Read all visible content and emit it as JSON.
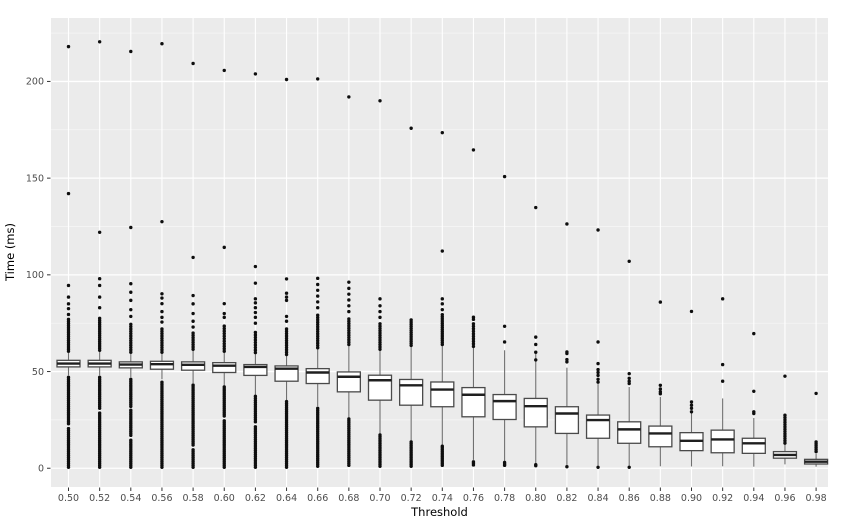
{
  "chart_data": {
    "type": "boxplot",
    "title": "",
    "xlabel": "Threshold",
    "ylabel": "Time (ms)",
    "x_tick_labels": [
      "0.50",
      "0.52",
      "0.54",
      "0.56",
      "0.58",
      "0.60",
      "0.62",
      "0.64",
      "0.66",
      "0.68",
      "0.70",
      "0.72",
      "0.74",
      "0.76",
      "0.78",
      "0.80",
      "0.82",
      "0.84",
      "0.86",
      "0.88",
      "0.90",
      "0.92",
      "0.94",
      "0.96",
      "0.98"
    ],
    "y_ticks": [
      0,
      50,
      100,
      150,
      200
    ],
    "y_minor_ticks": [
      25,
      75,
      125,
      175,
      225
    ],
    "ylim": [
      -9.7,
      232.8
    ],
    "grid": true,
    "legend": "none",
    "colors": {
      "panel_bg": "#ebebeb",
      "grid_major": "#ffffff",
      "grid_minor": "#f7f7f7",
      "tick_mark": "#333333",
      "tick_label": "#4d4d4d",
      "box_fill": "#ffffff",
      "box_stroke": "#4a4a4a",
      "median": "#1f1f1f",
      "whisker": "#707070",
      "point": "#0e0e0e"
    },
    "series": [
      {
        "label": "0.50",
        "x": 0.5,
        "whislo": 48.0,
        "q1": 52.4,
        "med": 54.1,
        "q3": 55.8,
        "whishi": 60.0,
        "outlier_runs": [
          [
            0.5,
            20.5,
            1.0
          ],
          [
            23.0,
            47.5,
            1.0
          ],
          [
            60.5,
            77.0,
            1.1
          ]
        ],
        "outliers": [
          79.5,
          82.5,
          85.0,
          88.5,
          94.5,
          142.0,
          218.0
        ]
      },
      {
        "label": "0.52",
        "x": 0.52,
        "whislo": 48.0,
        "q1": 52.4,
        "med": 54.1,
        "q3": 55.8,
        "whishi": 60.5,
        "outlier_runs": [
          [
            0.5,
            29.0,
            1.0
          ],
          [
            31.0,
            47.5,
            1.0
          ],
          [
            61.0,
            78.0,
            1.1
          ]
        ],
        "outliers": [
          83.0,
          88.5,
          94.5,
          98.0,
          122.0,
          220.5
        ]
      },
      {
        "label": "0.54",
        "x": 0.54,
        "whislo": 47.0,
        "q1": 51.9,
        "med": 53.6,
        "q3": 55.0,
        "whishi": 60.0,
        "outlier_runs": [
          [
            0.5,
            15.0,
            1.0
          ],
          [
            17.0,
            30.0,
            1.0
          ],
          [
            32.0,
            46.5,
            1.0
          ],
          [
            60.0,
            75.0,
            1.2
          ]
        ],
        "outliers": [
          78.5,
          82.0,
          86.8,
          91.0,
          95.4,
          124.5,
          215.5
        ]
      },
      {
        "label": "0.56",
        "x": 0.56,
        "whislo": 46.0,
        "q1": 51.2,
        "med": 53.8,
        "q3": 55.3,
        "whishi": 60.5,
        "outlier_runs": [
          [
            0.5,
            45.0,
            1.0
          ],
          [
            60.0,
            72.0,
            1.2
          ]
        ],
        "outliers": [
          75.6,
          78.0,
          81.0,
          85.1,
          88.0,
          90.2,
          127.5,
          219.5
        ]
      },
      {
        "label": "0.58",
        "x": 0.58,
        "whislo": 44.0,
        "q1": 50.7,
        "med": 53.5,
        "q3": 55.0,
        "whishi": 61.0,
        "outlier_runs": [
          [
            0.5,
            10.0,
            1.0
          ],
          [
            12.0,
            43.0,
            1.0
          ],
          [
            61.5,
            70.0,
            1.2
          ]
        ],
        "outliers": [
          73.0,
          76.0,
          80.0,
          85.0,
          89.3,
          109.0,
          209.3
        ]
      },
      {
        "label": "0.60",
        "x": 0.6,
        "whislo": 42.4,
        "q1": 49.5,
        "med": 53.0,
        "q3": 54.6,
        "whishi": 60.0,
        "outlier_runs": [
          [
            0.5,
            25.0,
            1.0
          ],
          [
            27.0,
            42.0,
            1.0
          ],
          [
            60.5,
            74.0,
            1.3
          ]
        ],
        "outliers": [
          78.0,
          80.0,
          85.1,
          114.2,
          205.7
        ]
      },
      {
        "label": "0.62",
        "x": 0.62,
        "whislo": 37.8,
        "q1": 48.0,
        "med": 52.4,
        "q3": 53.6,
        "whishi": 59.3,
        "outlier_runs": [
          [
            0.5,
            22.0,
            1.1
          ],
          [
            24.0,
            37.5,
            1.1
          ],
          [
            59.8,
            71.0,
            1.3
          ]
        ],
        "outliers": [
          75.0,
          78.0,
          80.5,
          83.0,
          85.5,
          87.6,
          95.7,
          104.3,
          203.9
        ]
      },
      {
        "label": "0.64",
        "x": 0.64,
        "whislo": 35.2,
        "q1": 45.0,
        "med": 51.5,
        "q3": 52.9,
        "whishi": 58.4,
        "outlier_runs": [
          [
            0.5,
            35.0,
            1.0
          ],
          [
            58.8,
            73.0,
            1.2
          ]
        ],
        "outliers": [
          76.0,
          78.5,
          86.8,
          88.5,
          90.5,
          97.9,
          201.0
        ]
      },
      {
        "label": "0.66",
        "x": 0.66,
        "whislo": 32.0,
        "q1": 43.8,
        "med": 49.5,
        "q3": 51.5,
        "whishi": 61.9,
        "outlier_runs": [
          [
            1.0,
            31.8,
            1.0
          ],
          [
            62.3,
            80.0,
            1.2
          ]
        ],
        "outliers": [
          83.0,
          86.0,
          89.0,
          92.0,
          95.0,
          98.2,
          201.3
        ]
      },
      {
        "label": "0.68",
        "x": 0.68,
        "whislo": 26.1,
        "q1": 39.5,
        "med": 47.3,
        "q3": 49.8,
        "whishi": 63.6,
        "outlier_runs": [
          [
            1.5,
            26.0,
            1.0
          ],
          [
            64.0,
            78.0,
            1.2
          ]
        ],
        "outliers": [
          81.0,
          84.0,
          87.0,
          90.0,
          93.0,
          96.2,
          192.0
        ]
      },
      {
        "label": "0.70",
        "x": 0.7,
        "whislo": 18.0,
        "q1": 35.2,
        "med": 45.5,
        "q3": 48.1,
        "whishi": 61.0,
        "outlier_runs": [
          [
            1.0,
            18.0,
            0.9
          ],
          [
            61.5,
            75.0,
            1.2
          ]
        ],
        "outliers": [
          78.0,
          81.0,
          84.0,
          87.6,
          190.0
        ]
      },
      {
        "label": "0.72",
        "x": 0.72,
        "whislo": 13.7,
        "q1": 32.6,
        "med": 42.9,
        "q3": 45.9,
        "whishi": 63.0,
        "outlier_runs": [
          [
            1.0,
            13.7,
            0.9
          ],
          [
            63.5,
            77.3,
            1.1
          ]
        ],
        "outliers": [
          175.8
        ]
      },
      {
        "label": "0.74",
        "x": 0.74,
        "whislo": 12.0,
        "q1": 31.8,
        "med": 40.7,
        "q3": 44.6,
        "whishi": 63.6,
        "outlier_runs": [
          [
            1.5,
            12.0,
            0.9
          ],
          [
            64.0,
            80.0,
            1.1
          ]
        ],
        "outliers": [
          82.0,
          85.0,
          87.6,
          112.3,
          173.5
        ]
      },
      {
        "label": "0.76",
        "x": 0.76,
        "whislo": 4.3,
        "q1": 26.6,
        "med": 38.0,
        "q3": 41.7,
        "whishi": 62.7,
        "outlier_runs": [
          [
            63.0,
            75.0,
            1.3
          ]
        ],
        "outliers": [
          1.7,
          2.6,
          3.3,
          77.0,
          78.1,
          164.6
        ]
      },
      {
        "label": "0.78",
        "x": 0.78,
        "whislo": 2.6,
        "q1": 25.2,
        "med": 34.7,
        "q3": 38.1,
        "whishi": 61.0,
        "outlier_runs": [],
        "outliers": [
          1.5,
          2.2,
          3.0,
          65.3,
          73.4,
          150.8
        ]
      },
      {
        "label": "0.80",
        "x": 0.8,
        "whislo": 1.7,
        "q1": 21.4,
        "med": 32.1,
        "q3": 36.1,
        "whishi": 60.1,
        "outlier_runs": [],
        "outliers": [
          1.3,
          1.8,
          56.0,
          60.0,
          64.0,
          67.8,
          134.8
        ]
      },
      {
        "label": "0.82",
        "x": 0.82,
        "whislo": 1.7,
        "q1": 18.0,
        "med": 28.3,
        "q3": 31.8,
        "whishi": 52.0,
        "outlier_runs": [],
        "outliers": [
          0.8,
          55.0,
          56.2,
          59.3,
          60.1,
          126.3
        ]
      },
      {
        "label": "0.84",
        "x": 0.84,
        "whislo": 1.3,
        "q1": 15.5,
        "med": 24.9,
        "q3": 27.5,
        "whishi": 43.5,
        "outlier_runs": [],
        "outliers": [
          0.5,
          44.5,
          46.0,
          48.0,
          49.5,
          51.0,
          54.1,
          65.3,
          123.2
        ]
      },
      {
        "label": "0.86",
        "x": 0.86,
        "whislo": 1.2,
        "q1": 12.9,
        "med": 20.1,
        "q3": 24.0,
        "whishi": 42.0,
        "outlier_runs": [],
        "outliers": [
          0.5,
          43.8,
          45.0,
          46.5,
          48.9,
          107.0
        ]
      },
      {
        "label": "0.88",
        "x": 0.88,
        "whislo": 1.0,
        "q1": 11.1,
        "med": 18.0,
        "q3": 21.8,
        "whishi": 36.9,
        "outlier_runs": [],
        "outliers": [
          38.5,
          39.5,
          41.0,
          42.9,
          85.9
        ]
      },
      {
        "label": "0.90",
        "x": 0.9,
        "whislo": 0.9,
        "q1": 9.1,
        "med": 14.2,
        "q3": 18.4,
        "whishi": 29.0,
        "outlier_runs": [],
        "outliers": [
          29.2,
          31.0,
          32.6,
          34.3,
          81.1
        ]
      },
      {
        "label": "0.92",
        "x": 0.92,
        "whislo": 1.0,
        "q1": 8.0,
        "med": 14.9,
        "q3": 19.7,
        "whishi": 36.1,
        "outlier_runs": [],
        "outliers": [
          45.0,
          53.6,
          87.6
        ]
      },
      {
        "label": "0.94",
        "x": 0.94,
        "whislo": 0.8,
        "q1": 7.7,
        "med": 12.9,
        "q3": 15.5,
        "whishi": 26.0,
        "outlier_runs": [],
        "outliers": [
          28.3,
          29.2,
          39.8,
          69.6
        ]
      },
      {
        "label": "0.96",
        "x": 0.96,
        "whislo": 2.0,
        "q1": 5.2,
        "med": 6.9,
        "q3": 8.6,
        "whishi": 12.5,
        "outlier_runs": [
          [
            13.0,
            27.5,
            1.2
          ]
        ],
        "outliers": [
          47.6
        ]
      },
      {
        "label": "0.98",
        "x": 0.98,
        "whislo": 0.8,
        "q1": 2.2,
        "med": 3.4,
        "q3": 4.6,
        "whishi": 7.5,
        "outlier_runs": [
          [
            8.6,
            13.7,
            1.0
          ]
        ],
        "outliers": [
          38.7
        ]
      }
    ]
  }
}
